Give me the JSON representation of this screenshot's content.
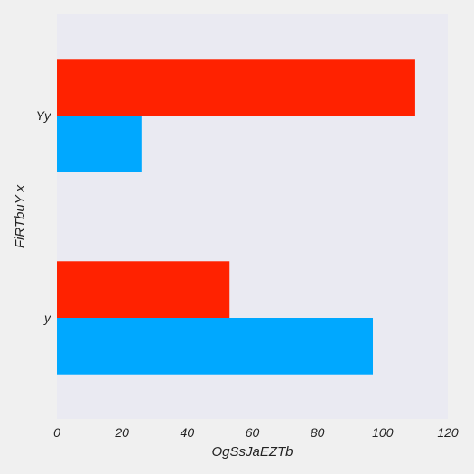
{
  "chart_data": {
    "type": "bar",
    "orientation": "horizontal",
    "categories": [
      "y",
      "Yy"
    ],
    "series": [
      {
        "values": [
          97,
          26
        ],
        "color": "#00a8ff"
      },
      {
        "values": [
          53,
          110
        ],
        "color": "#ff2200"
      }
    ],
    "xlabel": "OgSsJaEZTb",
    "ylabel": "FiRTbuY x",
    "xlim": [
      0,
      120
    ],
    "xticks": [
      0,
      20,
      40,
      60,
      80,
      100,
      120
    ],
    "grid": false,
    "legend": "none",
    "plot_background": "#eaeaf2",
    "page_background": "#f0f0f0"
  }
}
